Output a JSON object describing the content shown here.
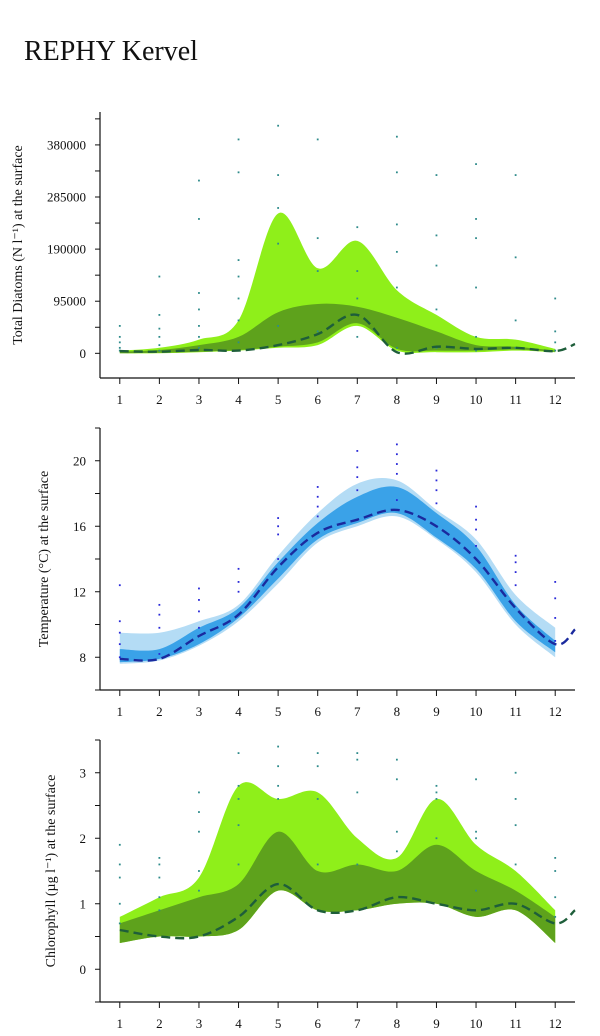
{
  "title": "REPHY Kervel",
  "chart_data": [
    {
      "type": "area",
      "ylabel": "Total Diatoms (N l⁻¹) at the surface",
      "x": [
        1,
        2,
        3,
        4,
        5,
        6,
        7,
        8,
        9,
        10,
        11,
        12
      ],
      "xticks": [
        1,
        2,
        3,
        4,
        5,
        6,
        7,
        8,
        9,
        10,
        11,
        12
      ],
      "yticks": [
        0,
        95000,
        190000,
        285000,
        380000
      ],
      "ylim": [
        -45000,
        440000
      ],
      "colors": {
        "outer": "#8fef1a",
        "inner": "#5ea21c",
        "median": "#1e5e3a",
        "points": "#2e8b8b"
      },
      "series": [
        {
          "x": [
            1,
            2,
            3,
            4,
            5,
            6,
            7,
            8,
            9,
            10,
            11,
            12
          ],
          "upper": [
            5000,
            10000,
            25000,
            60000,
            255000,
            155000,
            205000,
            115000,
            70000,
            30000,
            25000,
            8000
          ],
          "lower": [
            0,
            0,
            2000,
            5000,
            10000,
            15000,
            50000,
            5000,
            2000,
            2000,
            5000,
            2000
          ]
        },
        {
          "x": [
            1,
            2,
            3,
            4,
            5,
            6,
            7,
            8,
            9,
            10,
            11,
            12
          ],
          "upper": [
            3000,
            6000,
            15000,
            30000,
            75000,
            90000,
            85000,
            65000,
            40000,
            15000,
            12000,
            5000
          ],
          "lower": [
            0,
            1000,
            3000,
            6000,
            12000,
            20000,
            55000,
            8000,
            5000,
            5000,
            7000,
            3000
          ]
        },
        {
          "x": [
            1,
            2,
            3,
            4,
            5,
            6,
            7,
            8,
            9,
            10,
            11,
            12,
            12.5
          ],
          "values": [
            4000,
            3000,
            6000,
            5000,
            15000,
            35000,
            70000,
            2000,
            12000,
            8000,
            10000,
            4000,
            17000
          ]
        }
      ],
      "scatter": [
        {
          "x": 1,
          "values": [
            5000,
            10000,
            20000,
            30000,
            50000
          ]
        },
        {
          "x": 2,
          "values": [
            5000,
            15000,
            30000,
            45000,
            70000,
            140000
          ]
        },
        {
          "x": 3,
          "values": [
            10000,
            30000,
            50000,
            80000,
            110000,
            245000,
            315000
          ]
        },
        {
          "x": 4,
          "values": [
            20000,
            60000,
            100000,
            140000,
            170000,
            330000,
            390000
          ]
        },
        {
          "x": 5,
          "values": [
            50000,
            200000,
            265000,
            325000,
            415000
          ]
        },
        {
          "x": 6,
          "values": [
            40000,
            150000,
            210000,
            390000
          ]
        },
        {
          "x": 7,
          "values": [
            30000,
            100000,
            150000,
            230000
          ]
        },
        {
          "x": 8,
          "values": [
            10000,
            120000,
            185000,
            235000,
            330000,
            395000
          ]
        },
        {
          "x": 9,
          "values": [
            10000,
            80000,
            160000,
            215000,
            325000
          ]
        },
        {
          "x": 10,
          "values": [
            5000,
            30000,
            120000,
            210000,
            245000,
            345000
          ]
        },
        {
          "x": 11,
          "values": [
            10000,
            60000,
            175000,
            325000
          ]
        },
        {
          "x": 12,
          "values": [
            5000,
            20000,
            40000,
            100000
          ]
        }
      ]
    },
    {
      "type": "area",
      "ylabel": "Temperature (°C) at the surface",
      "x": [
        1,
        2,
        3,
        4,
        5,
        6,
        7,
        8,
        9,
        10,
        11,
        12
      ],
      "xticks": [
        1,
        2,
        3,
        4,
        5,
        6,
        7,
        8,
        9,
        10,
        11,
        12
      ],
      "yticks": [
        8,
        12,
        16,
        20
      ],
      "ylim": [
        6,
        22
      ],
      "colors": {
        "outer": "#b4dcf5",
        "inner": "#3aa2e8",
        "median": "#1a2a9e",
        "points": "#2828d8"
      },
      "series": [
        {
          "x": [
            1,
            2,
            3,
            4,
            5,
            6,
            7,
            8,
            9,
            10,
            11,
            12
          ],
          "upper": [
            9.5,
            9.5,
            10.2,
            11.2,
            14.2,
            16.8,
            18.6,
            18.8,
            17.0,
            15.2,
            11.8,
            9.8
          ],
          "lower": [
            7.6,
            7.8,
            8.7,
            10.2,
            12.5,
            15.0,
            16.0,
            16.6,
            15.2,
            13.2,
            10.0,
            8.0
          ]
        },
        {
          "x": [
            1,
            2,
            3,
            4,
            5,
            6,
            7,
            8,
            9,
            10,
            11,
            12
          ],
          "upper": [
            8.5,
            8.5,
            9.8,
            11.0,
            13.8,
            16.2,
            17.8,
            18.4,
            16.8,
            14.8,
            11.2,
            9.0
          ],
          "lower": [
            7.7,
            7.9,
            8.8,
            10.4,
            12.8,
            15.2,
            16.2,
            16.8,
            15.3,
            13.4,
            10.2,
            8.3
          ]
        },
        {
          "x": [
            1,
            2,
            3,
            4,
            5,
            6,
            7,
            8,
            9,
            10,
            11,
            12,
            12.5
          ],
          "values": [
            7.9,
            7.9,
            9.3,
            10.6,
            13.5,
            15.6,
            16.4,
            17.0,
            16.0,
            14.0,
            11.0,
            8.8,
            9.7
          ]
        }
      ],
      "scatter": [
        {
          "x": 1,
          "values": [
            8.0,
            8.8,
            9.5,
            10.2,
            12.4
          ]
        },
        {
          "x": 2,
          "values": [
            8.2,
            9.8,
            10.6,
            11.2
          ]
        },
        {
          "x": 3,
          "values": [
            9.8,
            10.8,
            11.5,
            12.2
          ]
        },
        {
          "x": 4,
          "values": [
            10.6,
            12.0,
            12.6,
            13.4
          ]
        },
        {
          "x": 5,
          "values": [
            14.0,
            15.5,
            16.0,
            16.5
          ]
        },
        {
          "x": 6,
          "values": [
            16.6,
            17.2,
            17.8,
            18.4
          ]
        },
        {
          "x": 7,
          "values": [
            18.2,
            19.0,
            19.6,
            20.6
          ]
        },
        {
          "x": 8,
          "values": [
            17.6,
            19.2,
            19.8,
            20.4,
            21.0
          ]
        },
        {
          "x": 9,
          "values": [
            17.4,
            18.2,
            18.8,
            19.4
          ]
        },
        {
          "x": 10,
          "values": [
            14.8,
            15.8,
            16.4,
            17.2
          ]
        },
        {
          "x": 11,
          "values": [
            12.4,
            13.2,
            13.8,
            14.2
          ]
        },
        {
          "x": 12,
          "values": [
            9.0,
            10.4,
            11.6,
            12.6
          ]
        }
      ]
    },
    {
      "type": "area",
      "ylabel": "Chlorophyll (µg l⁻¹) at the surface",
      "x": [
        1,
        2,
        3,
        4,
        5,
        6,
        7,
        8,
        9,
        10,
        11,
        12
      ],
      "xticks": [
        1,
        2,
        3,
        4,
        5,
        6,
        7,
        8,
        9,
        10,
        11,
        12
      ],
      "yticks": [
        0,
        1,
        2,
        3
      ],
      "ylim": [
        -0.5,
        3.5
      ],
      "colors": {
        "outer": "#8fef1a",
        "inner": "#5ea21c",
        "median": "#1e5e3a",
        "points": "#2e8b8b"
      },
      "series": [
        {
          "x": [
            1,
            2,
            3,
            4,
            5,
            6,
            7,
            8,
            9,
            10,
            11,
            12
          ],
          "upper": [
            0.8,
            1.1,
            1.4,
            2.8,
            2.6,
            2.7,
            2.0,
            1.7,
            2.6,
            1.9,
            1.5,
            0.9
          ],
          "lower": [
            0.4,
            0.5,
            0.5,
            0.6,
            1.2,
            0.9,
            0.9,
            1.0,
            1.0,
            0.8,
            0.9,
            0.4
          ]
        },
        {
          "x": [
            1,
            2,
            3,
            4,
            5,
            6,
            7,
            8,
            9,
            10,
            11,
            12
          ],
          "upper": [
            0.7,
            0.9,
            1.1,
            1.3,
            2.1,
            1.5,
            1.6,
            1.5,
            1.9,
            1.5,
            1.2,
            0.8
          ],
          "lower": [
            0.4,
            0.5,
            0.5,
            0.6,
            1.2,
            0.9,
            0.9,
            1.0,
            1.0,
            0.8,
            0.9,
            0.4
          ]
        },
        {
          "x": [
            1,
            2,
            3,
            4,
            5,
            6,
            7,
            8,
            9,
            10,
            11,
            12,
            12.5
          ],
          "values": [
            0.6,
            0.5,
            0.5,
            0.8,
            1.3,
            0.9,
            0.9,
            1.1,
            1.0,
            0.9,
            1.0,
            0.7,
            0.9
          ]
        }
      ],
      "scatter": [
        {
          "x": 1,
          "values": [
            0.7,
            1.0,
            1.4,
            1.6,
            1.9
          ]
        },
        {
          "x": 2,
          "values": [
            0.9,
            1.1,
            1.4,
            1.6,
            1.7
          ]
        },
        {
          "x": 3,
          "values": [
            1.2,
            1.5,
            2.1,
            2.4,
            2.7
          ]
        },
        {
          "x": 4,
          "values": [
            1.6,
            2.2,
            2.6,
            2.8,
            3.3
          ]
        },
        {
          "x": 5,
          "values": [
            1.3,
            2.6,
            2.8,
            3.1,
            3.4
          ]
        },
        {
          "x": 6,
          "values": [
            1.6,
            2.6,
            3.1,
            3.3
          ]
        },
        {
          "x": 7,
          "values": [
            1.6,
            2.7,
            3.2,
            3.3
          ]
        },
        {
          "x": 8,
          "values": [
            1.8,
            2.1,
            2.9,
            3.2
          ]
        },
        {
          "x": 9,
          "values": [
            2.0,
            2.6,
            2.7,
            2.8
          ]
        },
        {
          "x": 10,
          "values": [
            1.2,
            2.0,
            2.1,
            2.9
          ]
        },
        {
          "x": 11,
          "values": [
            1.6,
            2.2,
            2.6,
            3.0
          ]
        },
        {
          "x": 12,
          "values": [
            0.8,
            1.1,
            1.5,
            1.7
          ]
        }
      ]
    }
  ]
}
